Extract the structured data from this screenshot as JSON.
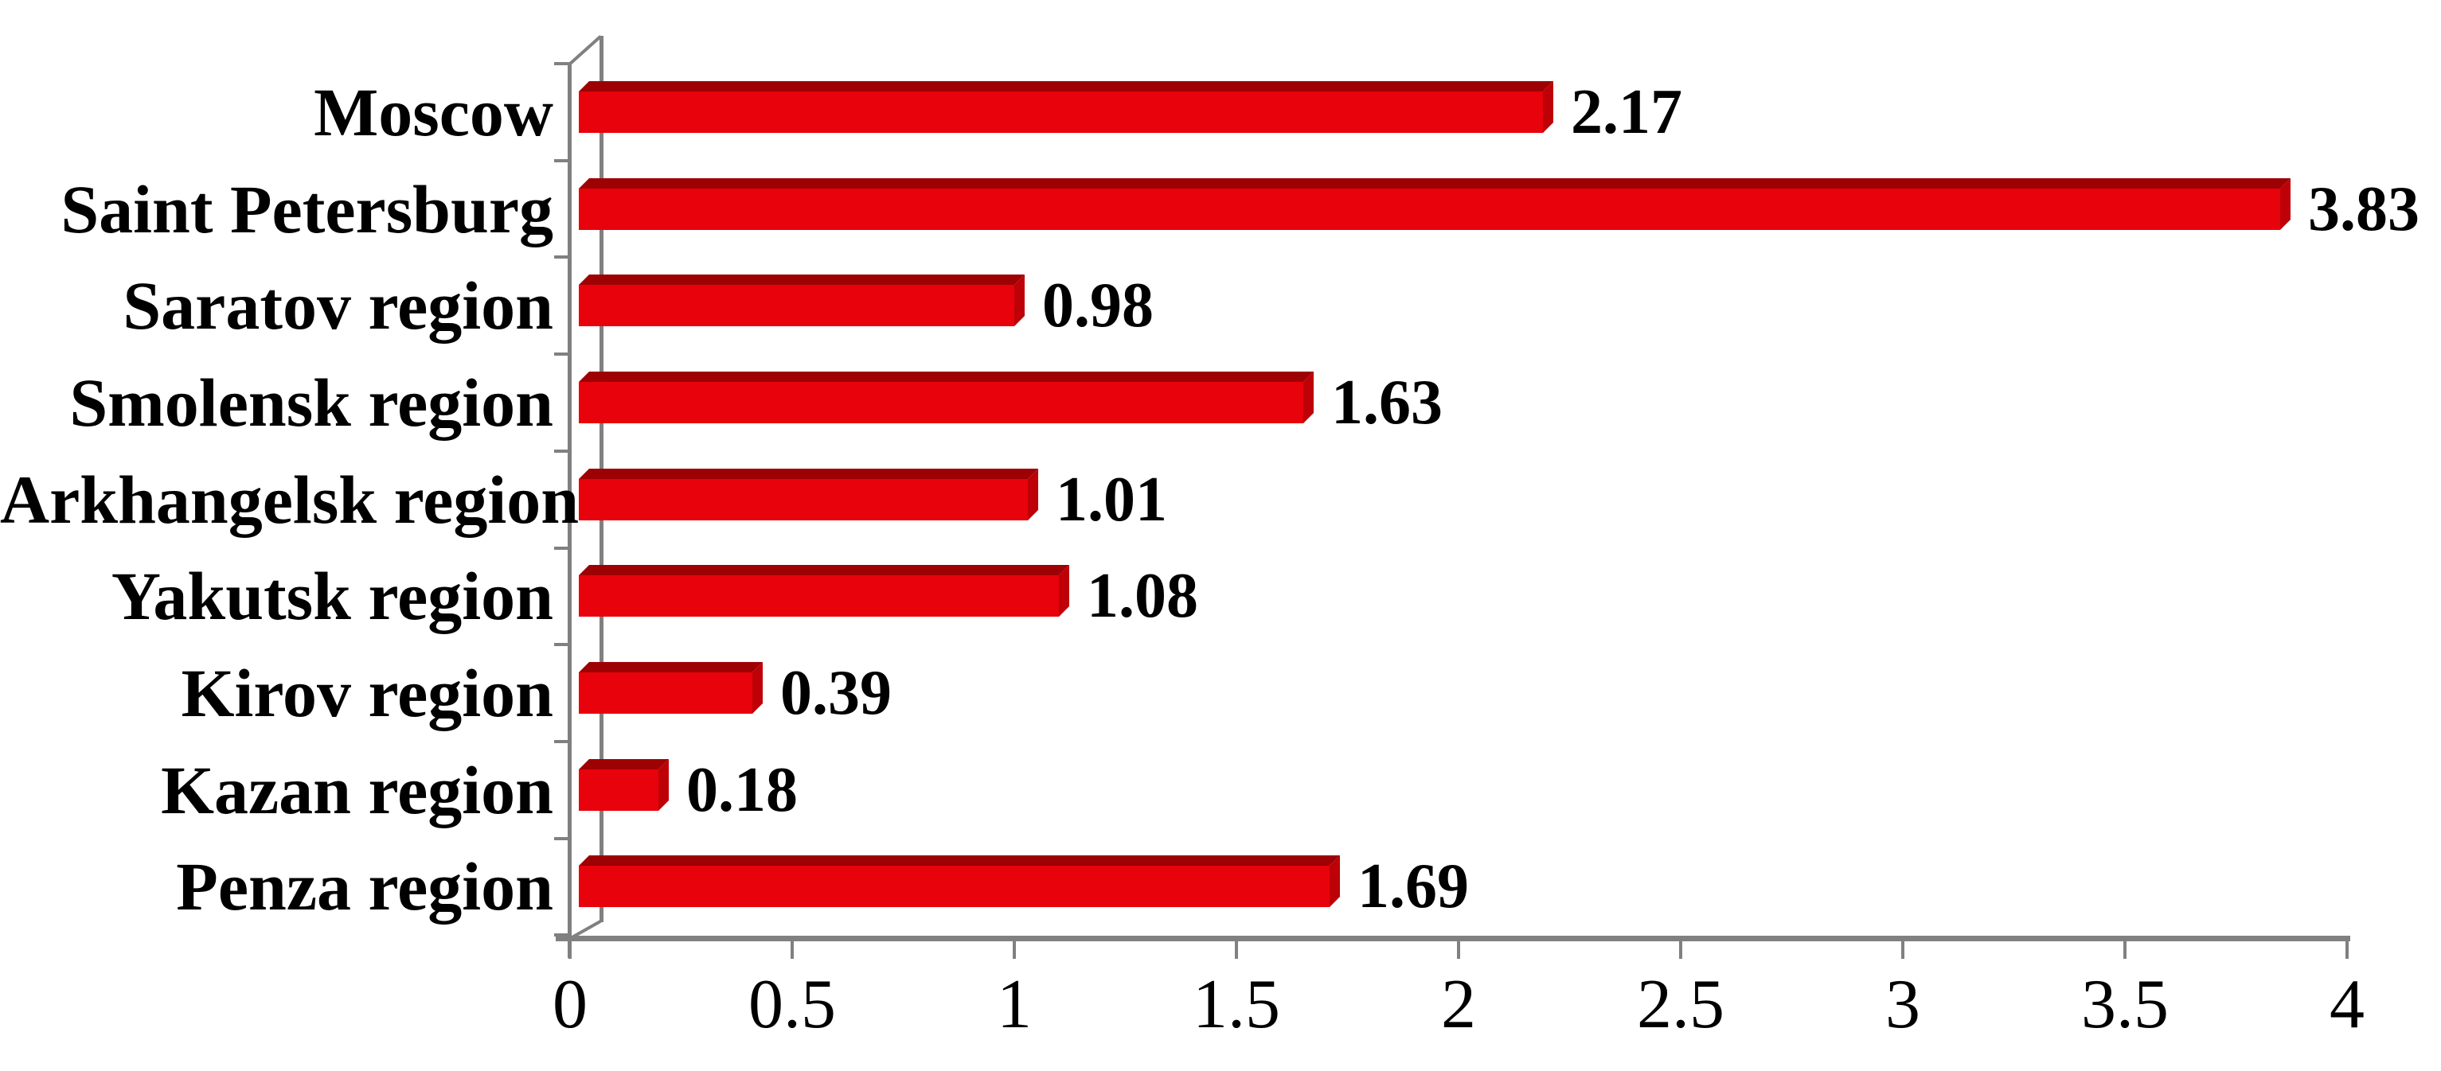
{
  "chart_data": {
    "type": "bar",
    "orientation": "horizontal",
    "style": "3d",
    "title": "",
    "xlabel": "",
    "ylabel": "",
    "grid": false,
    "legend": false,
    "xlim": [
      0,
      4
    ],
    "categories": [
      "Moscow",
      "Saint Petersburg",
      "Saratov region",
      "Smolensk region",
      "Arkhangelsk region",
      "Yakutsk region",
      "Kirov region",
      "Kazan region",
      "Penza region"
    ],
    "values": [
      2.17,
      3.83,
      0.98,
      1.63,
      1.01,
      1.08,
      0.39,
      0.18,
      1.69
    ],
    "value_labels": [
      "2.17",
      "3.83",
      "0.98",
      "1.63",
      "1.01",
      "1.08",
      "0.39",
      "0.18",
      "1.69"
    ],
    "x_tick_labels": [
      "0",
      "0.5",
      "1",
      "1.5",
      "2",
      "2.5",
      "3",
      "3.5",
      "4"
    ],
    "colors": {
      "bar_front": "#e8020c",
      "bar_top": "#9e0104",
      "bar_side": "#be0107",
      "axis": "#808080",
      "text": "#000000",
      "background": "#ffffff"
    }
  }
}
